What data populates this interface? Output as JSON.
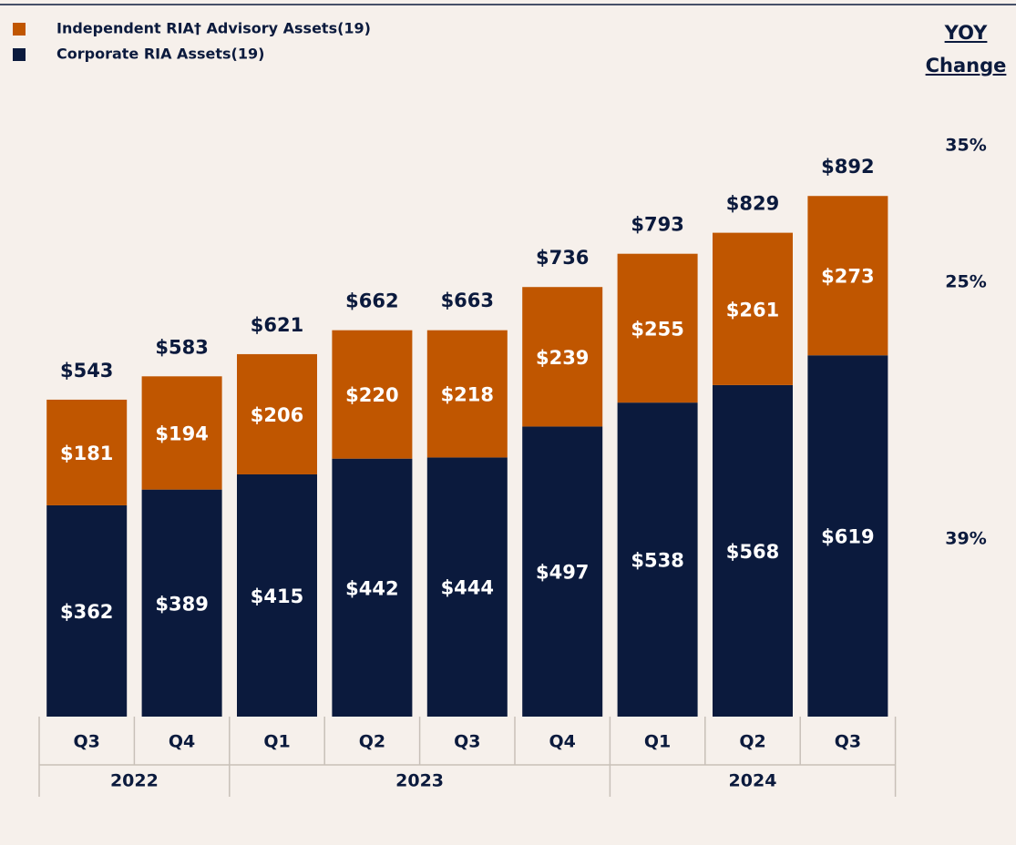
{
  "chart_data": {
    "type": "stacked_bar",
    "categories": [
      "Q3",
      "Q4",
      "Q1",
      "Q2",
      "Q3",
      "Q4",
      "Q1",
      "Q2",
      "Q3"
    ],
    "groups": [
      {
        "label": "2022",
        "categories": 2
      },
      {
        "label": "2023",
        "categories": 4
      },
      {
        "label": "2024",
        "categories": 3
      }
    ],
    "series": [
      {
        "name": "Corporate RIA Assets(19)",
        "color": "#0b1a3d",
        "values": [
          362,
          389,
          415,
          442,
          444,
          497,
          538,
          568,
          619
        ],
        "value_labels": [
          "$362",
          "$389",
          "$415",
          "$442",
          "$444",
          "$497",
          "$538",
          "$568",
          "$619"
        ]
      },
      {
        "name": "Independent RIA† Advisory Assets(19)",
        "color": "#c05600",
        "values": [
          181,
          194,
          206,
          220,
          218,
          239,
          255,
          261,
          273
        ],
        "value_labels": [
          "$181",
          "$194",
          "$206",
          "$220",
          "$218",
          "$239",
          "$255",
          "$261",
          "$273"
        ]
      }
    ],
    "totals": [
      543,
      583,
      621,
      662,
      663,
      736,
      793,
      829,
      892
    ],
    "total_labels": [
      "$543",
      "$583",
      "$621",
      "$662",
      "$663",
      "$736",
      "$793",
      "$829",
      "$892"
    ],
    "yoy_title": "YOY Change",
    "yoy": [
      {
        "value": 35,
        "label": "35%"
      },
      {
        "value": 25,
        "label": "25%"
      },
      {
        "value": 39,
        "label": "39%"
      }
    ]
  }
}
